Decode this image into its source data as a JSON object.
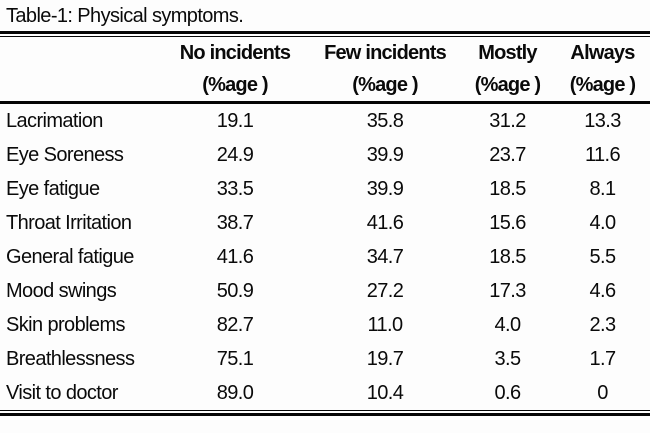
{
  "page": {
    "background": "#fdfdfd",
    "text_color": "#0a0a0a",
    "rule_color": "#050505"
  },
  "title": "Table-1: Physical symptoms.",
  "table": {
    "columns": [
      {
        "label": "",
        "sub": ""
      },
      {
        "label": "No incidents",
        "sub": "(%age )"
      },
      {
        "label": "Few incidents",
        "sub": "(%age )"
      },
      {
        "label": "Mostly",
        "sub": "(%age )"
      },
      {
        "label": "Always",
        "sub": "(%age )"
      }
    ],
    "rows": [
      {
        "symptom": "Lacrimation",
        "values": [
          "19.1",
          "35.8",
          "31.2",
          "13.3"
        ]
      },
      {
        "symptom": "Eye Soreness",
        "values": [
          "24.9",
          "39.9",
          "23.7",
          "11.6"
        ]
      },
      {
        "symptom": "Eye fatigue",
        "values": [
          "33.5",
          "39.9",
          "18.5",
          "8.1"
        ]
      },
      {
        "symptom": "Throat Irritation",
        "values": [
          "38.7",
          "41.6",
          "15.6",
          "4.0"
        ]
      },
      {
        "symptom": "General fatigue",
        "values": [
          "41.6",
          "34.7",
          "18.5",
          "5.5"
        ]
      },
      {
        "symptom": "Mood swings",
        "values": [
          "50.9",
          "27.2",
          "17.3",
          "4.6"
        ]
      },
      {
        "symptom": "Skin problems",
        "values": [
          "82.7",
          "11.0",
          "4.0",
          "2.3"
        ]
      },
      {
        "symptom": "Breathlessness",
        "values": [
          "75.1",
          "19.7",
          "3.5",
          "1.7"
        ]
      },
      {
        "symptom": "Visit to doctor",
        "values": [
          "89.0",
          "10.4",
          "0.6",
          "0"
        ]
      }
    ]
  }
}
